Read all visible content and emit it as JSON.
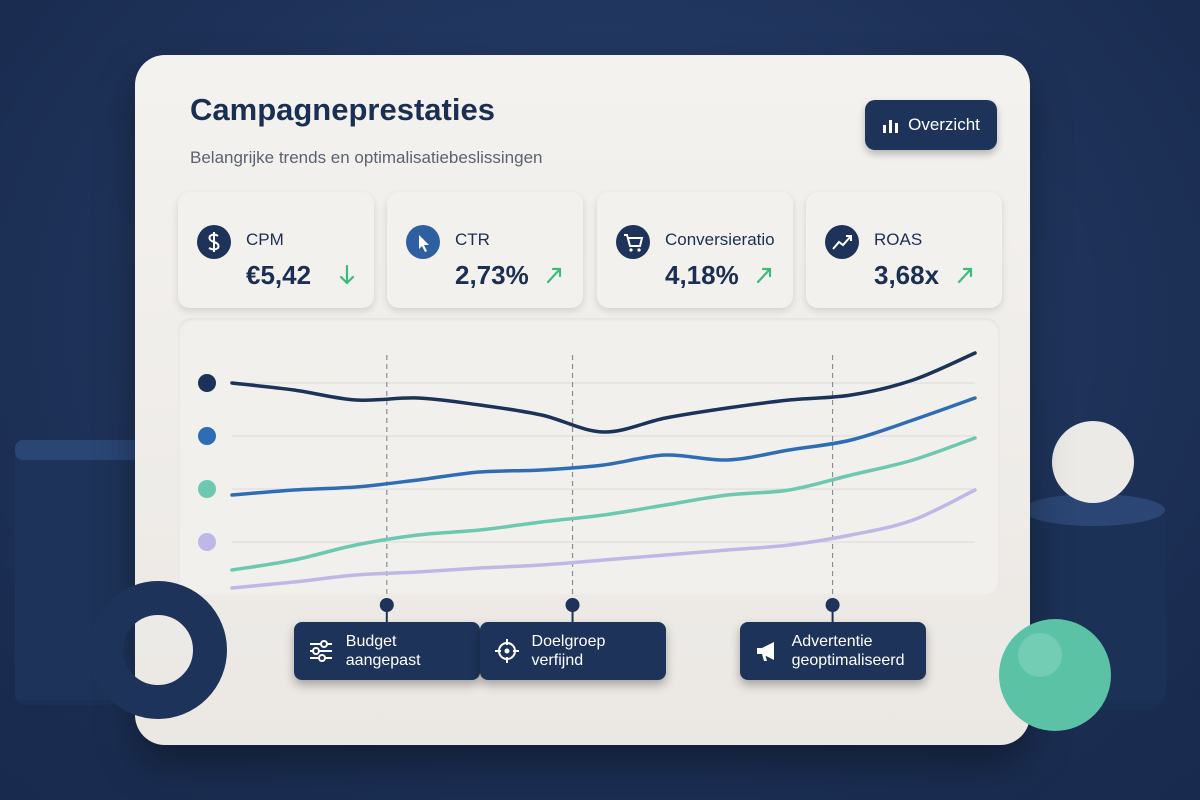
{
  "header": {
    "title": "Campagneprestaties",
    "subtitle": "Belangrijke trends en optimalisatiebeslissingen",
    "button": "Overzicht"
  },
  "kpis": [
    {
      "label": "CPM",
      "value": "€5,42",
      "trend": "down"
    },
    {
      "label": "CTR",
      "value": "2,73%",
      "trend": "up"
    },
    {
      "label": "Conversieratio",
      "value": "4,18%",
      "trend": "up"
    },
    {
      "label": "ROAS",
      "value": "3,68x",
      "trend": "up"
    }
  ],
  "chart_data": {
    "type": "line",
    "ylim": [
      0,
      100
    ],
    "grid": true,
    "series": [
      {
        "color": "#1b3358",
        "values": [
          82.8,
          80,
          76,
          76.8,
          74,
          70,
          63.2,
          68.8,
          72.8,
          76,
          78,
          84,
          94.8
        ]
      },
      {
        "color": "#2e6db4",
        "values": [
          38,
          40,
          41.2,
          44,
          47.2,
          48,
          50,
          54,
          52,
          56,
          60,
          68,
          76.8
        ]
      },
      {
        "color": "#6cc8b0",
        "values": [
          8,
          12,
          18,
          22,
          24,
          27.2,
          30,
          34,
          38,
          40,
          46,
          52,
          60.8
        ]
      },
      {
        "color": "#bdb8e6",
        "values": [
          0.8,
          3.2,
          6,
          7.2,
          8.8,
          10,
          12,
          14,
          16,
          18,
          22,
          28,
          40
        ]
      }
    ],
    "annotations": [
      {
        "label": "Budget aangepast",
        "at": 2.5
      },
      {
        "label": "Doelgroep verfijnd",
        "at": 5.5
      },
      {
        "label": "Advertentie geoptimaliseerd",
        "at": 9.7
      }
    ]
  }
}
